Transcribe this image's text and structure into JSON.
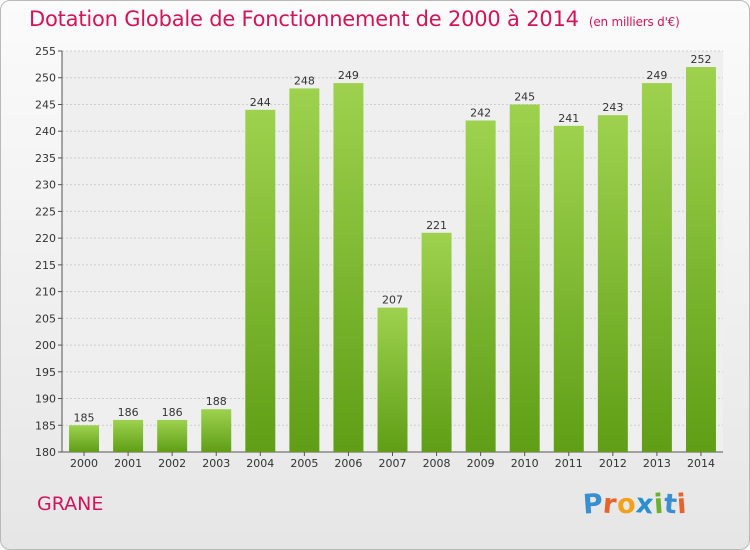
{
  "header": {
    "title": "Dotation Globale de Fonctionnement de 2000 à 2014",
    "subtitle": "(en milliers d'€)"
  },
  "footer": {
    "city": "GRANE",
    "logo_text": "Proxiti"
  },
  "colors": {
    "title": "#d4145a",
    "bar_top": "#9ed24e",
    "bar_bottom": "#5f9e16",
    "logo_letters": [
      "#3a8fd0",
      "#e8632b",
      "#f2a21a",
      "#2a8fd0",
      "#6ab12f",
      "#3a8fd0",
      "#e8632b"
    ]
  },
  "chart_data": {
    "type": "bar",
    "categories": [
      "2000",
      "2001",
      "2002",
      "2003",
      "2004",
      "2005",
      "2006",
      "2007",
      "2008",
      "2009",
      "2010",
      "2011",
      "2012",
      "2013",
      "2014"
    ],
    "values": [
      185,
      186,
      186,
      188,
      244,
      248,
      249,
      207,
      221,
      242,
      245,
      241,
      243,
      249,
      252
    ],
    "ylim": [
      180,
      255
    ],
    "yticks": [
      180,
      185,
      190,
      195,
      200,
      205,
      210,
      215,
      220,
      225,
      230,
      235,
      240,
      245,
      250,
      255
    ],
    "grid": true,
    "xlabel": "",
    "ylabel": ""
  }
}
